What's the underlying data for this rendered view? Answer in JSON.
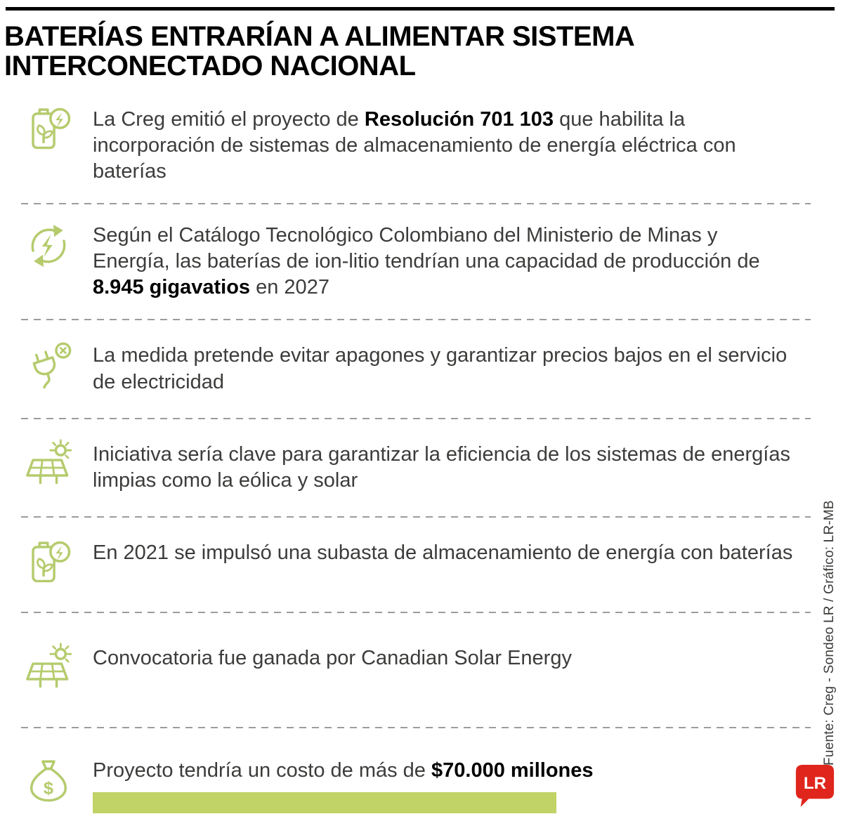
{
  "colors": {
    "accent_green": "#b5cb6d",
    "bar_green": "#c1d266",
    "logo_red": "#e0261c",
    "text": "#3c3c3b",
    "separator": "#9c9c9b"
  },
  "header": {
    "title_line1": "BATERÍAS ENTRARÍAN A ALIMENTAR SISTEMA",
    "title_line2": "INTERCONECTADO NACIONAL"
  },
  "items": [
    {
      "icon": "battery-charging-icon",
      "segments": [
        {
          "text": "La Creg emitió el proyecto de ",
          "bold": false
        },
        {
          "text": "Resolución 701 103",
          "bold": true
        },
        {
          "text": " que habilita la incorporación de sistemas de almacenamiento de energía eléctrica con baterías",
          "bold": false
        }
      ]
    },
    {
      "icon": "energy-cycle-icon",
      "segments": [
        {
          "text": "Según el Catálogo Tecnológico Colombiano del Ministerio de Minas y Energía, las baterías de ion-litio tendrían una capacidad de producción de ",
          "bold": false
        },
        {
          "text": "8.945 gigavatios",
          "bold": true
        },
        {
          "text": " en 2027",
          "bold": false
        }
      ]
    },
    {
      "icon": "plug-outage-icon",
      "segments": [
        {
          "text": "La medida pretende evitar apagones y garantizar precios bajos en el servicio de electricidad",
          "bold": false
        }
      ]
    },
    {
      "icon": "solar-panel-icon",
      "segments": [
        {
          "text": "Iniciativa sería clave para garantizar la eficiencia de los sistemas de energías limpias como la eólica y solar",
          "bold": false
        }
      ]
    },
    {
      "icon": "battery-charging-icon",
      "segments": [
        {
          "text": "En 2021 se impulsó una subasta de almacenamiento de energía con baterías",
          "bold": false
        }
      ]
    },
    {
      "icon": "solar-panel-icon",
      "segments": [
        {
          "text": "Convocatoria fue ganada por Canadian Solar Energy",
          "bold": false
        }
      ]
    },
    {
      "icon": "money-bag-icon",
      "segments": [
        {
          "text": "Proyecto tendría un costo de más de ",
          "bold": false
        },
        {
          "text": "$70.000 millones",
          "bold": true
        }
      ]
    }
  ],
  "icons": {
    "money_symbol": "$"
  },
  "footer": {
    "credit": "Fuente: Creg - Sondeo LR / Gráfico: LR-MB",
    "logo_text": "LR"
  }
}
